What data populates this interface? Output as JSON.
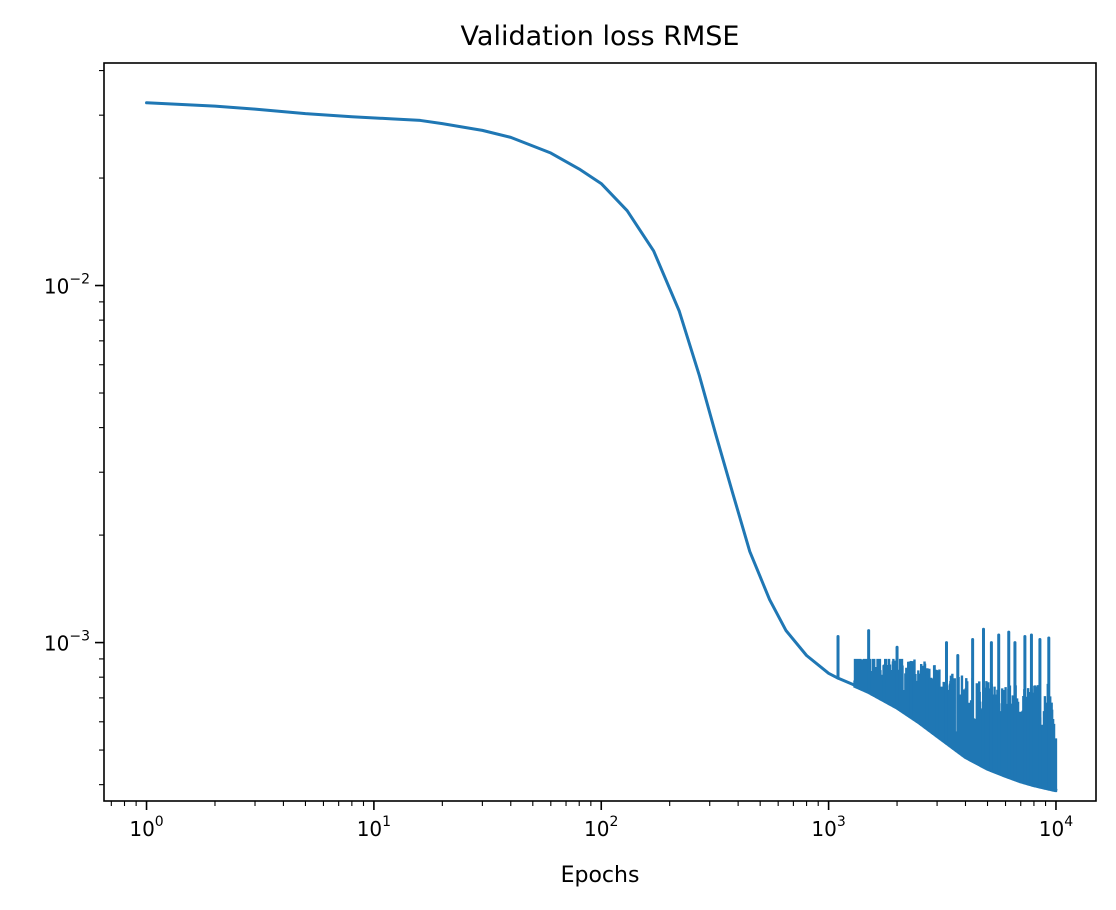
{
  "chart_data": {
    "type": "line",
    "title": "Validation loss RMSE",
    "xlabel": "Epochs",
    "ylabel": "",
    "xscale": "log",
    "yscale": "log",
    "xlim": [
      0.65,
      15000
    ],
    "ylim": [
      0.00036,
      0.042
    ],
    "grid": false,
    "legend": "none",
    "series_color": "#1f77b4",
    "x_major_ticks": [
      {
        "value": 1,
        "base": "10",
        "exp": "0"
      },
      {
        "value": 10,
        "base": "10",
        "exp": "1"
      },
      {
        "value": 100,
        "base": "10",
        "exp": "2"
      },
      {
        "value": 1000,
        "base": "10",
        "exp": "3"
      },
      {
        "value": 10000,
        "base": "10",
        "exp": "4"
      }
    ],
    "y_major_ticks": [
      {
        "value": 0.001,
        "base": "10",
        "exp": "−3"
      },
      {
        "value": 0.01,
        "base": "10",
        "exp": "−2"
      }
    ],
    "series": [
      {
        "x": [
          1,
          2,
          3,
          5,
          8,
          12,
          16,
          20,
          30,
          40,
          60,
          80,
          100,
          130,
          170,
          220,
          270,
          320,
          380,
          450,
          550,
          650,
          800,
          1000,
          1100,
          1300,
          1500,
          2000,
          2500,
          3000,
          4000,
          5000,
          6000,
          7000,
          8000,
          9000,
          10000
        ],
        "y": [
          0.0325,
          0.0318,
          0.0312,
          0.0303,
          0.0297,
          0.0293,
          0.029,
          0.0284,
          0.0272,
          0.026,
          0.0235,
          0.0212,
          0.0193,
          0.0162,
          0.0125,
          0.0085,
          0.0056,
          0.0038,
          0.0026,
          0.0018,
          0.00132,
          0.00108,
          0.00092,
          0.00082,
          0.000795,
          0.00076,
          0.00073,
          0.00066,
          0.0006,
          0.00055,
          0.00048,
          0.000445,
          0.000425,
          0.00041,
          0.0004,
          0.000393,
          0.000387
        ]
      }
    ],
    "spikes": [
      {
        "x": 1100,
        "y": 0.00104
      },
      {
        "x": 1500,
        "y": 0.00108
      },
      {
        "x": 1750,
        "y": 0.00086
      },
      {
        "x": 2000,
        "y": 0.00097
      },
      {
        "x": 2300,
        "y": 0.00088
      },
      {
        "x": 2700,
        "y": 0.00082
      },
      {
        "x": 3000,
        "y": 0.00083
      },
      {
        "x": 3300,
        "y": 0.001
      },
      {
        "x": 3700,
        "y": 0.00092
      },
      {
        "x": 4300,
        "y": 0.00102
      },
      {
        "x": 4800,
        "y": 0.00109
      },
      {
        "x": 5200,
        "y": 0.001
      },
      {
        "x": 5600,
        "y": 0.00105
      },
      {
        "x": 6200,
        "y": 0.00107
      },
      {
        "x": 6600,
        "y": 0.001
      },
      {
        "x": 7300,
        "y": 0.00104
      },
      {
        "x": 7800,
        "y": 0.00105
      },
      {
        "x": 8500,
        "y": 0.00102
      },
      {
        "x": 9300,
        "y": 0.00103
      }
    ]
  }
}
